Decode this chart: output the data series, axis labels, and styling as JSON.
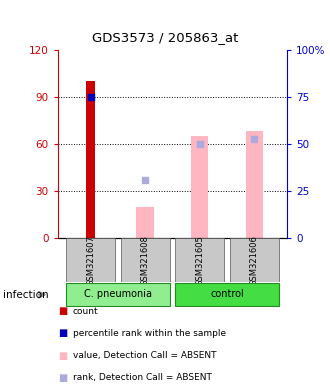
{
  "title": "GDS3573 / 205863_at",
  "samples": [
    "GSM321607",
    "GSM321608",
    "GSM321605",
    "GSM321606"
  ],
  "ylim_left": [
    0,
    120
  ],
  "ylim_right": [
    0,
    100
  ],
  "yticks_left": [
    0,
    30,
    60,
    90,
    120
  ],
  "ytick_labels_left": [
    "0",
    "30",
    "60",
    "90",
    "120"
  ],
  "ytick_labels_right": [
    "0",
    "25",
    "50",
    "75",
    "100%"
  ],
  "left_axis_color": "#CC0000",
  "right_axis_color": "#0000CC",
  "count_bar": {
    "sample_idx": 0,
    "value": 100,
    "color": "#CC0000"
  },
  "percentile_dot": {
    "sample_idx": 0,
    "value": 75,
    "color": "#0000BB"
  },
  "value_absent_bars": [
    {
      "sample_idx": 1,
      "value": 20,
      "color": "#FFB6C1"
    },
    {
      "sample_idx": 2,
      "value": 65,
      "color": "#FFB6C1"
    },
    {
      "sample_idx": 3,
      "value": 68,
      "color": "#FFB6C1"
    }
  ],
  "rank_absent_dots": [
    {
      "sample_idx": 1,
      "value": 37,
      "color": "#AAAADD"
    },
    {
      "sample_idx": 2,
      "value": 60,
      "color": "#AAAADD"
    },
    {
      "sample_idx": 3,
      "value": 63,
      "color": "#AAAADD"
    }
  ],
  "group_cpneu": {
    "label": "C. pneumonia",
    "color": "#90EE90",
    "samples": [
      0,
      1
    ]
  },
  "group_ctrl": {
    "label": "control",
    "color": "#44DD44",
    "samples": [
      2,
      3
    ]
  },
  "infection_label": "infection",
  "legend_items": [
    {
      "color": "#CC0000",
      "label": "count",
      "marker": "s"
    },
    {
      "color": "#0000BB",
      "label": "percentile rank within the sample",
      "marker": "s"
    },
    {
      "color": "#FFB6C1",
      "label": "value, Detection Call = ABSENT",
      "marker": "s"
    },
    {
      "color": "#AAAADD",
      "label": "rank, Detection Call = ABSENT",
      "marker": "s"
    }
  ],
  "fig_width": 3.3,
  "fig_height": 3.84,
  "dpi": 100
}
